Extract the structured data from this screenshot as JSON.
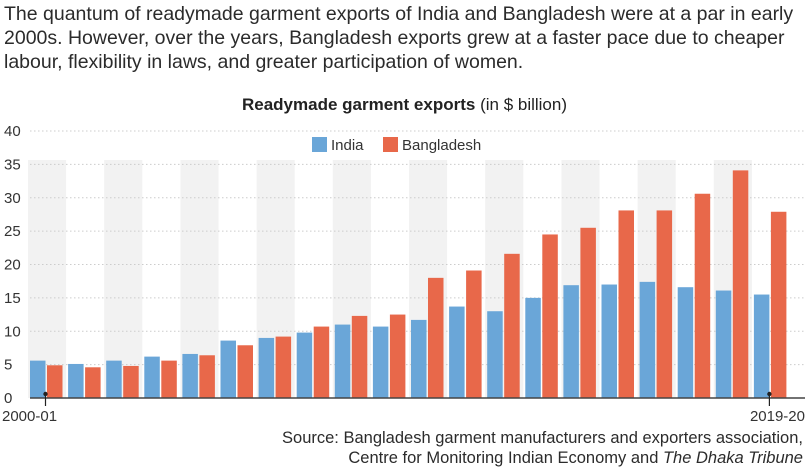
{
  "intro_text": "The quantum of readymade garment exports of India and Bangladesh were at a par in early 2000s. However, over the years, Bangladesh exports grew at a faster pace due to cheaper labour, flexibility in laws, and greater participation of women.",
  "source": {
    "line1": "Source: Bangladesh garment manufacturers and exporters association,",
    "line2_prefix": "Centre for Monitoring Indian Economy and ",
    "line2_italic": "The Dhaka Tribune"
  },
  "colors": {
    "india": "#6aa6d8",
    "bangladesh": "#e8684a",
    "band": "#f2f2f2",
    "axis": "#444444",
    "grid": "#cccccc"
  },
  "chart_data": {
    "type": "bar",
    "title": "Readymade garment exports",
    "title_unit": "(in $ billion)",
    "categories": [
      "2000-01",
      "",
      "",
      "",
      "",
      "",
      "",
      "",
      "",
      "",
      "",
      "",
      "",
      "",
      "",
      "",
      "",
      "",
      "",
      "2019-20"
    ],
    "start_label": "2000-01",
    "end_label": "2019-20",
    "ylim": [
      0,
      40
    ],
    "yticks": [
      "0",
      "5",
      "10",
      "15",
      "20",
      "25",
      "30",
      "35",
      "40"
    ],
    "legend_position": "top-center",
    "grid": true,
    "series": [
      {
        "name": "India",
        "values": [
          5.6,
          5.1,
          5.6,
          6.2,
          6.6,
          8.6,
          9.0,
          9.8,
          11.0,
          10.7,
          11.7,
          13.7,
          13.0,
          15.0,
          16.9,
          17.0,
          17.4,
          16.6,
          16.1,
          15.5
        ]
      },
      {
        "name": "Bangladesh",
        "values": [
          4.9,
          4.6,
          4.8,
          5.6,
          6.4,
          7.9,
          9.2,
          10.7,
          12.3,
          12.5,
          18.0,
          19.1,
          21.6,
          24.5,
          25.5,
          28.1,
          28.1,
          30.6,
          34.1,
          27.9
        ]
      }
    ]
  }
}
